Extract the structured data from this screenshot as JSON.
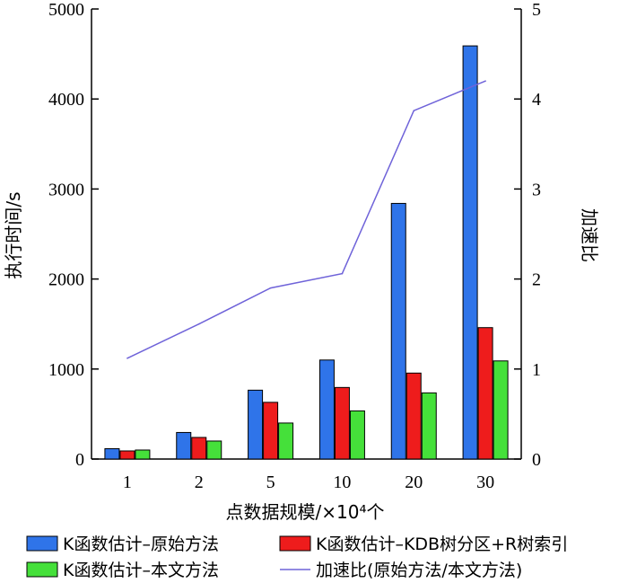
{
  "chart_data": {
    "type": "bar",
    "categories": [
      "1",
      "2",
      "5",
      "10",
      "20",
      "30"
    ],
    "xlabel": "点数据规模/×10⁴个",
    "ylabel": "执行时间/s",
    "y2label": "加速比",
    "ylim": [
      0,
      5000
    ],
    "y2lim": [
      0,
      5
    ],
    "yticks": [
      "0",
      "1000",
      "2000",
      "3000",
      "4000",
      "5000"
    ],
    "y2ticks": [
      "0",
      "1",
      "2",
      "3",
      "4",
      "5"
    ],
    "grid": false,
    "legend_position": "bottom",
    "series": [
      {
        "name": "K函数估计–原始方法",
        "kind": "bar",
        "color": "#2f74e9",
        "values": [
          115,
          295,
          765,
          1100,
          2840,
          4590
        ]
      },
      {
        "name": "K函数估计–KDB树分区+R树索引",
        "kind": "bar",
        "color": "#ee1c1c",
        "values": [
          90,
          240,
          630,
          795,
          955,
          1460
        ]
      },
      {
        "name": "K函数估计–本文方法",
        "kind": "bar",
        "color": "#45e03a",
        "values": [
          100,
          200,
          400,
          535,
          735,
          1090
        ]
      },
      {
        "name": "加速比(原始方法/本文方法)",
        "kind": "line",
        "axis": "right",
        "color": "#6f63d9",
        "values": [
          1.12,
          1.5,
          1.9,
          2.06,
          3.87,
          4.2
        ]
      }
    ]
  }
}
